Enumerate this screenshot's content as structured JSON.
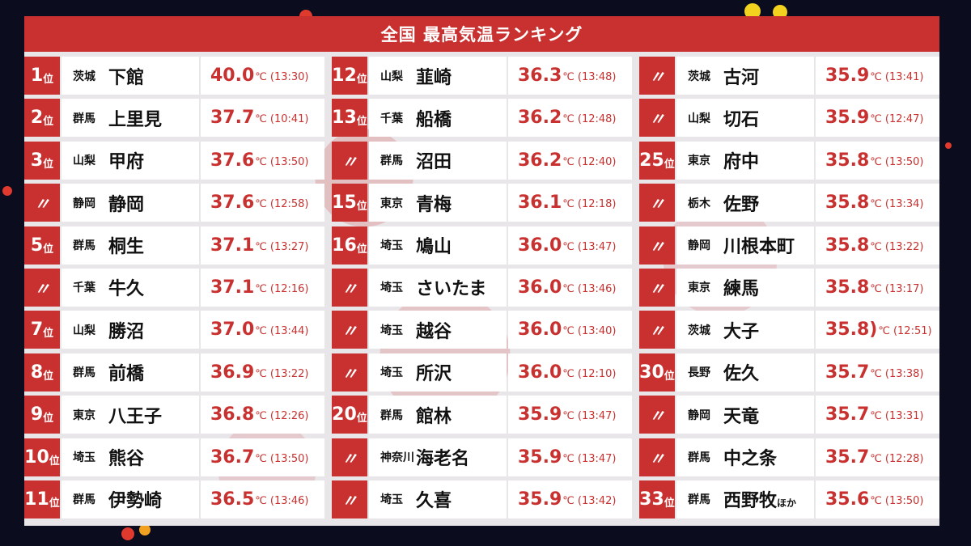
{
  "title": "全国 最高気温ランキング",
  "unit": "℃",
  "columns": [
    [
      {
        "rank_num": "1",
        "rank_suffix": "位",
        "pref": "茨城",
        "city": "下館",
        "city_suffix": "",
        "temp": "40.0",
        "time": "(13:30)"
      },
      {
        "rank_num": "2",
        "rank_suffix": "位",
        "pref": "群馬",
        "city": "上里見",
        "city_suffix": "",
        "temp": "37.7",
        "time": "(10:41)"
      },
      {
        "rank_num": "3",
        "rank_suffix": "位",
        "pref": "山梨",
        "city": "甲府",
        "city_suffix": "",
        "temp": "37.6",
        "time": "(13:50)"
      },
      {
        "rank_num": "〃",
        "rank_suffix": "",
        "pref": "静岡",
        "city": "静岡",
        "city_suffix": "",
        "temp": "37.6",
        "time": "(12:58)"
      },
      {
        "rank_num": "5",
        "rank_suffix": "位",
        "pref": "群馬",
        "city": "桐生",
        "city_suffix": "",
        "temp": "37.1",
        "time": "(13:27)"
      },
      {
        "rank_num": "〃",
        "rank_suffix": "",
        "pref": "千葉",
        "city": "牛久",
        "city_suffix": "",
        "temp": "37.1",
        "time": "(12:16)"
      },
      {
        "rank_num": "7",
        "rank_suffix": "位",
        "pref": "山梨",
        "city": "勝沼",
        "city_suffix": "",
        "temp": "37.0",
        "time": "(13:44)"
      },
      {
        "rank_num": "8",
        "rank_suffix": "位",
        "pref": "群馬",
        "city": "前橋",
        "city_suffix": "",
        "temp": "36.9",
        "time": "(13:22)"
      },
      {
        "rank_num": "9",
        "rank_suffix": "位",
        "pref": "東京",
        "city": "八王子",
        "city_suffix": "",
        "temp": "36.8",
        "time": "(12:26)"
      },
      {
        "rank_num": "10",
        "rank_suffix": "位",
        "pref": "埼玉",
        "city": "熊谷",
        "city_suffix": "",
        "temp": "36.7",
        "time": "(13:50)"
      },
      {
        "rank_num": "11",
        "rank_suffix": "位",
        "pref": "群馬",
        "city": "伊勢崎",
        "city_suffix": "",
        "temp": "36.5",
        "time": "(13:46)"
      }
    ],
    [
      {
        "rank_num": "12",
        "rank_suffix": "位",
        "pref": "山梨",
        "city": "韮崎",
        "city_suffix": "",
        "temp": "36.3",
        "time": "(13:48)"
      },
      {
        "rank_num": "13",
        "rank_suffix": "位",
        "pref": "千葉",
        "city": "船橋",
        "city_suffix": "",
        "temp": "36.2",
        "time": "(12:48)"
      },
      {
        "rank_num": "〃",
        "rank_suffix": "",
        "pref": "群馬",
        "city": "沼田",
        "city_suffix": "",
        "temp": "36.2",
        "time": "(12:40)"
      },
      {
        "rank_num": "15",
        "rank_suffix": "位",
        "pref": "東京",
        "city": "青梅",
        "city_suffix": "",
        "temp": "36.1",
        "time": "(12:18)"
      },
      {
        "rank_num": "16",
        "rank_suffix": "位",
        "pref": "埼玉",
        "city": "鳩山",
        "city_suffix": "",
        "temp": "36.0",
        "time": "(13:47)"
      },
      {
        "rank_num": "〃",
        "rank_suffix": "",
        "pref": "埼玉",
        "city": "さいたま",
        "city_suffix": "",
        "temp": "36.0",
        "time": "(13:46)"
      },
      {
        "rank_num": "〃",
        "rank_suffix": "",
        "pref": "埼玉",
        "city": "越谷",
        "city_suffix": "",
        "temp": "36.0",
        "time": "(13:40)"
      },
      {
        "rank_num": "〃",
        "rank_suffix": "",
        "pref": "埼玉",
        "city": "所沢",
        "city_suffix": "",
        "temp": "36.0",
        "time": "(12:10)"
      },
      {
        "rank_num": "20",
        "rank_suffix": "位",
        "pref": "群馬",
        "city": "館林",
        "city_suffix": "",
        "temp": "35.9",
        "time": "(13:47)"
      },
      {
        "rank_num": "〃",
        "rank_suffix": "",
        "pref": "神奈川",
        "city": "海老名",
        "city_suffix": "",
        "temp": "35.9",
        "time": "(13:47)"
      },
      {
        "rank_num": "〃",
        "rank_suffix": "",
        "pref": "埼玉",
        "city": "久喜",
        "city_suffix": "",
        "temp": "35.9",
        "time": "(13:42)"
      }
    ],
    [
      {
        "rank_num": "〃",
        "rank_suffix": "",
        "pref": "茨城",
        "city": "古河",
        "city_suffix": "",
        "temp": "35.9",
        "time": "(13:41)"
      },
      {
        "rank_num": "〃",
        "rank_suffix": "",
        "pref": "山梨",
        "city": "切石",
        "city_suffix": "",
        "temp": "35.9",
        "time": "(12:47)"
      },
      {
        "rank_num": "25",
        "rank_suffix": "位",
        "pref": "東京",
        "city": "府中",
        "city_suffix": "",
        "temp": "35.8",
        "time": "(13:50)"
      },
      {
        "rank_num": "〃",
        "rank_suffix": "",
        "pref": "栃木",
        "city": "佐野",
        "city_suffix": "",
        "temp": "35.8",
        "time": "(13:34)"
      },
      {
        "rank_num": "〃",
        "rank_suffix": "",
        "pref": "静岡",
        "city": "川根本町",
        "city_suffix": "",
        "temp": "35.8",
        "time": "(13:22)"
      },
      {
        "rank_num": "〃",
        "rank_suffix": "",
        "pref": "東京",
        "city": "練馬",
        "city_suffix": "",
        "temp": "35.8",
        "time": "(13:17)"
      },
      {
        "rank_num": "〃",
        "rank_suffix": "",
        "pref": "茨城",
        "city": "大子",
        "city_suffix": "",
        "temp": "35.8)",
        "time": "(12:51)"
      },
      {
        "rank_num": "30",
        "rank_suffix": "位",
        "pref": "長野",
        "city": "佐久",
        "city_suffix": "",
        "temp": "35.7",
        "time": "(13:38)"
      },
      {
        "rank_num": "〃",
        "rank_suffix": "",
        "pref": "静岡",
        "city": "天竜",
        "city_suffix": "",
        "temp": "35.7",
        "time": "(13:31)"
      },
      {
        "rank_num": "〃",
        "rank_suffix": "",
        "pref": "群馬",
        "city": "中之条",
        "city_suffix": "",
        "temp": "35.7",
        "time": "(12:28)"
      },
      {
        "rank_num": "33",
        "rank_suffix": "位",
        "pref": "群馬",
        "city": "西野牧",
        "city_suffix": "ほか",
        "temp": "35.6",
        "time": "(13:50)"
      }
    ]
  ]
}
